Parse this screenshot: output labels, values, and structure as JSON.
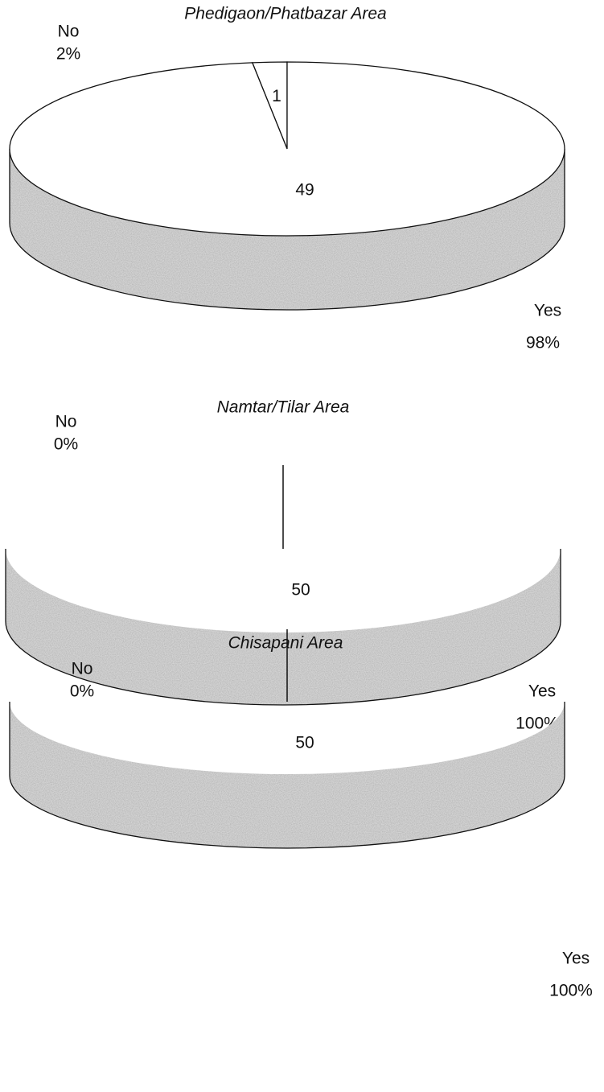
{
  "chart_data": [
    {
      "type": "pie",
      "title": "Phedigaon/Phatbazar  Area",
      "categories": [
        "No",
        "Yes"
      ],
      "values": [
        1,
        49
      ],
      "percentages": [
        2,
        98
      ],
      "percentage_labels": [
        "2%",
        "98%"
      ]
    },
    {
      "type": "pie",
      "title": "Namtar/Tilar  Area",
      "categories": [
        "No",
        "Yes"
      ],
      "values": [
        0,
        50
      ],
      "percentages": [
        0,
        100
      ],
      "percentage_labels": [
        "0%",
        "100%"
      ]
    },
    {
      "type": "pie",
      "title": "Chisapani Area",
      "categories": [
        "No",
        "Yes"
      ],
      "values": [
        0,
        50
      ],
      "percentages": [
        0,
        100
      ],
      "percentage_labels": [
        "0%",
        "100%"
      ]
    }
  ]
}
